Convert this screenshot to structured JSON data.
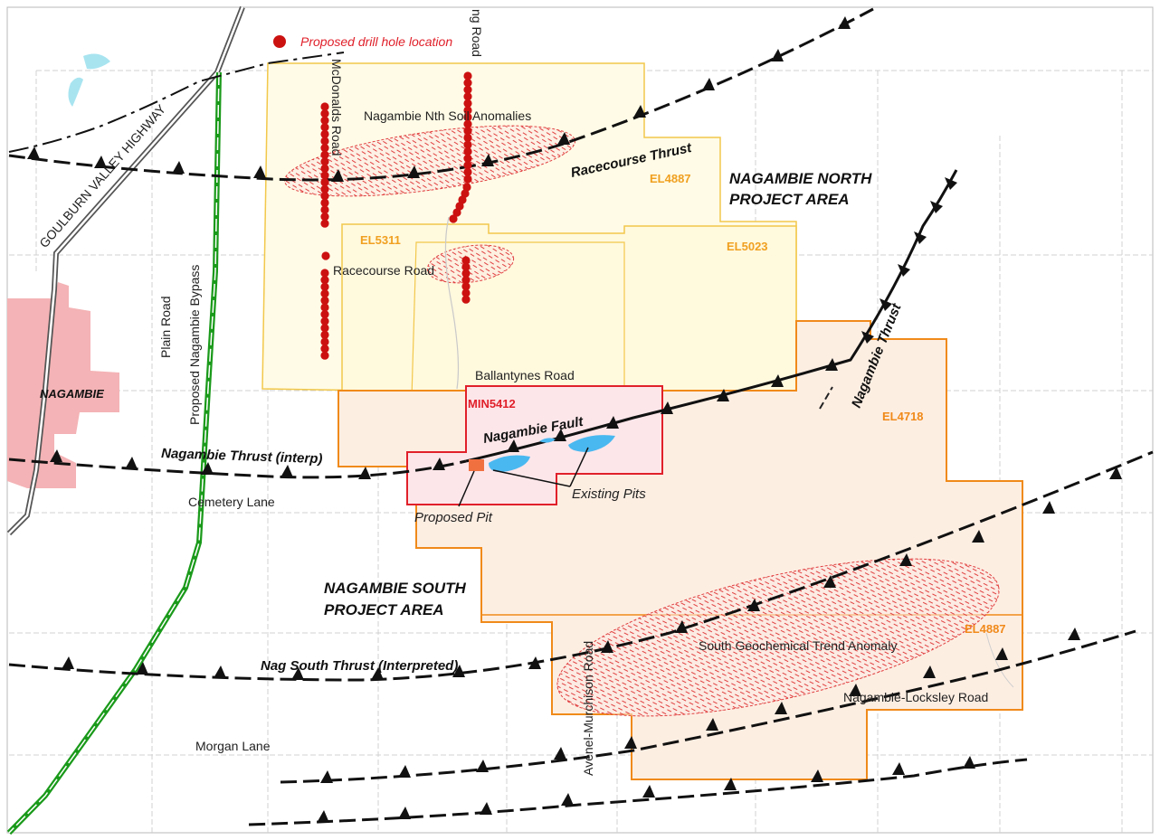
{
  "legend": {
    "drill_hole": "Proposed drill hole location"
  },
  "areas": {
    "north_line1": "NAGAMBIE NORTH",
    "north_line2": "PROJECT AREA",
    "south_line1": "NAGAMBIE SOUTH",
    "south_line2": "PROJECT AREA"
  },
  "tenements": {
    "el4887_north": "EL4887",
    "el5311": "EL5311",
    "el5023": "EL5023",
    "el4718": "EL4718",
    "el4887_south": "EL4887",
    "min5412": "MIN5412"
  },
  "structures": {
    "racecourse_thrust": "Racecourse Thrust",
    "nagambie_thrust": "Nagambie Thrust",
    "nagambie_fault": "Nagambie Fault",
    "nagambie_thrust_interp": "Nagambie Thrust (interp)",
    "nag_south_thrust": "Nag South Thrust (Interpreted)"
  },
  "anomalies": {
    "north": "Nagambie Nth Soil Anomalies",
    "south": "South Geochemical Trend Anomaly"
  },
  "pits": {
    "existing": "Existing Pits",
    "proposed": "Proposed Pit"
  },
  "roads": {
    "goulburn": "GOULBURN VALLEY HIGHWAY",
    "bypass": "Proposed Nagambie Bypass",
    "plain": "Plain Road",
    "mcdonalds": "McDonalds Road",
    "ng_road": "ng Road",
    "racecourse": "Racecourse Road",
    "ballantynes": "Ballantynes Road",
    "cemetery": "Cemetery Lane",
    "avenel": "Avenel-Murchison Road",
    "locksley": "Nagambie-Locksley Road",
    "morgan": "Morgan Lane"
  },
  "town": "NAGAMBIE",
  "colors": {
    "north_area_fill": "#fffbe6",
    "north_area_stroke": "#f2c84b",
    "south_area_fill": "#fdeee2",
    "south_area_stroke": "#f08a1a",
    "min_fill": "#fde6ea",
    "min_stroke": "#e0202a",
    "drill": "#cc1111",
    "town_fill": "#f4b3b6",
    "water": "#a8e4f0",
    "bypass": "#1a9a1a",
    "pit_existing": "#4ab8f0",
    "pit_proposed": "#f07040"
  }
}
